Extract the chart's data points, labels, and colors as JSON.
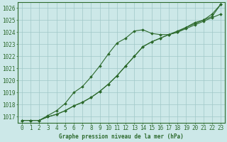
{
  "xlabel": "Graphe pression niveau de la mer (hPa)",
  "hours": [
    0,
    1,
    2,
    3,
    4,
    5,
    6,
    7,
    8,
    9,
    10,
    11,
    12,
    13,
    14,
    15,
    16,
    17,
    18,
    19,
    20,
    21,
    22,
    23
  ],
  "line_main": [
    1016.7,
    1016.7,
    1016.7,
    1017.0,
    1017.2,
    1017.5,
    1017.9,
    1018.2,
    1018.6,
    1019.1,
    1019.7,
    1020.4,
    1021.2,
    1022.0,
    1022.8,
    1023.2,
    1023.5,
    1023.8,
    1024.1,
    1024.4,
    1024.7,
    1025.0,
    1025.3,
    1026.3
  ],
  "line_upper": [
    1016.7,
    1016.7,
    1016.7,
    1017.1,
    1017.5,
    1018.1,
    1019.0,
    1019.5,
    1020.3,
    1021.2,
    1022.2,
    1023.1,
    1023.5,
    1024.1,
    1024.2,
    1023.9,
    1023.8,
    1023.8,
    1024.0,
    1024.4,
    1024.8,
    1025.0,
    1025.5,
    1026.3
  ],
  "line_lower": [
    1016.7,
    1016.7,
    1016.7,
    1017.0,
    1017.2,
    1017.5,
    1017.9,
    1018.2,
    1018.6,
    1019.1,
    1019.7,
    1020.4,
    1021.2,
    1022.0,
    1022.8,
    1023.2,
    1023.5,
    1023.8,
    1024.0,
    1024.3,
    1024.6,
    1024.9,
    1025.2,
    1025.5
  ],
  "line_color": "#2d6a2d",
  "bg_color": "#cce8e8",
  "grid_color": "#a0c8c8",
  "ylim": [
    1016.5,
    1026.5
  ],
  "yticks": [
    1017,
    1018,
    1019,
    1020,
    1021,
    1022,
    1023,
    1024,
    1025,
    1026
  ],
  "marker": "D",
  "marker_size": 1.8,
  "line_width": 0.8,
  "tick_fontsize": 5.5,
  "xlabel_fontsize": 5.5
}
